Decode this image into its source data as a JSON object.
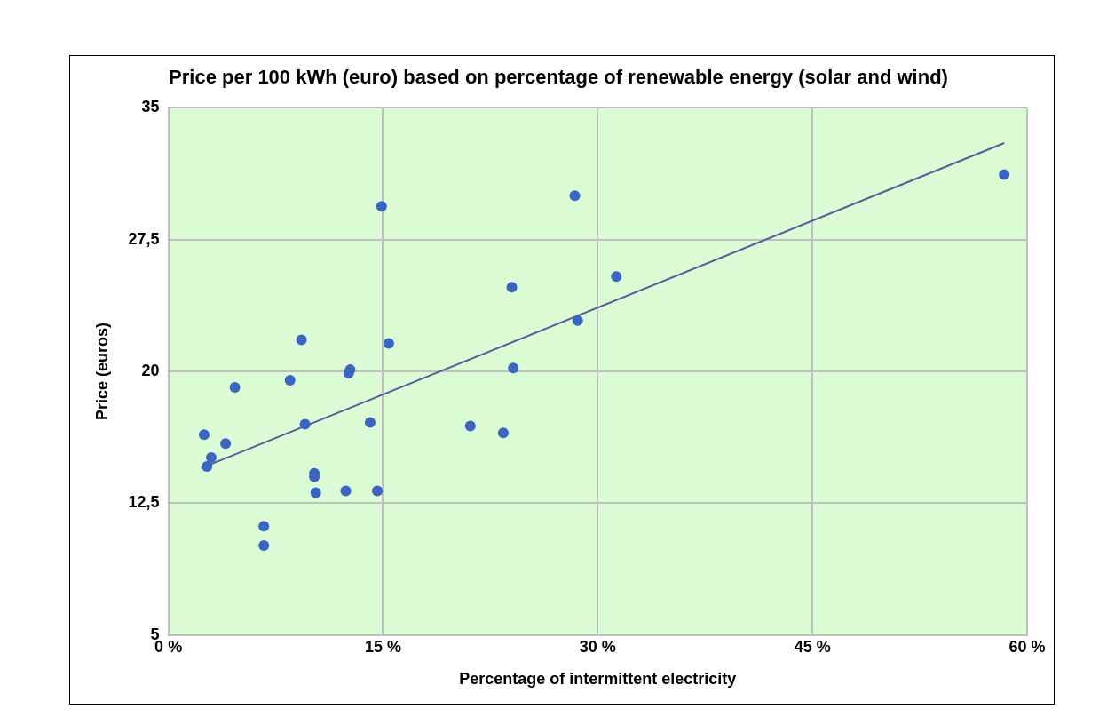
{
  "chart_data": {
    "type": "scatter",
    "title": "Price per 100 kWh (euro) based on percentage of renewable energy (solar and wind)",
    "x_label": "Percentage of intermittent electricity",
    "y_label": "Price (euros)",
    "series": [
      {
        "type": "scatter",
        "color": "#3b65c4",
        "marker": "circle",
        "x": [
          2.5,
          2.7,
          3.0,
          4.0,
          4.65,
          6.67,
          6.67,
          8.5,
          9.3,
          9.55,
          10.2,
          10.2,
          10.3,
          12.4,
          12.6,
          12.7,
          14.1,
          14.6,
          14.9,
          15.4,
          21.1,
          23.4,
          24.0,
          24.1,
          28.4,
          28.6,
          31.3,
          58.4
        ],
        "values": [
          16.4,
          14.6,
          15.1,
          15.9,
          19.1,
          11.2,
          10.1,
          19.5,
          21.8,
          17.0,
          14.0,
          14.2,
          13.1,
          13.2,
          19.9,
          20.1,
          17.1,
          13.2,
          29.4,
          21.6,
          16.9,
          16.5,
          24.8,
          20.2,
          30.0,
          22.9,
          25.4,
          31.2
        ]
      },
      {
        "type": "line",
        "color": "#5a5c9c",
        "line_style": "solid",
        "x": [
          2.3,
          58.4
        ],
        "values": [
          14.5,
          33.0
        ]
      }
    ],
    "xlim": [
      0,
      60
    ],
    "xticks": [
      {
        "value": 0,
        "label": "0 %"
      },
      {
        "value": 15,
        "label": "15 %"
      },
      {
        "value": 30,
        "label": "30 %"
      },
      {
        "value": 45,
        "label": "45 %"
      },
      {
        "value": 60,
        "label": "60 %"
      }
    ],
    "ylim": [
      5,
      35
    ],
    "yticks": [
      5,
      {
        "value": 12.5,
        "label": "12,5"
      },
      20,
      {
        "value": 27.5,
        "label": "27,5"
      },
      35
    ],
    "grid": true
  }
}
